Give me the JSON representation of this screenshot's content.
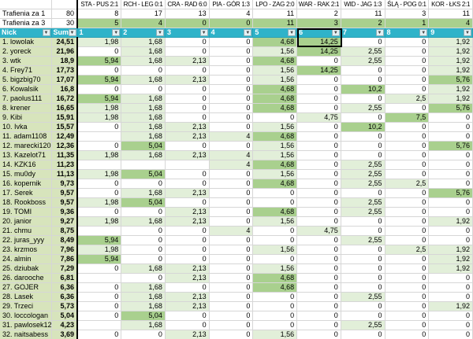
{
  "matches": [
    "STA - PUS 2:1",
    "RCH - LEG 0:1",
    "CRA - RAD 6:0",
    "PIA - GÓR 1:3",
    "LPO - ZAG 2:0",
    "WAR - RAK 2:1",
    "WID - JAG 1:3",
    "ŚLĄ - POG 0:1",
    "KOR - ŁKS 2:1"
  ],
  "hits_rows": [
    {
      "label": "Trafienia za 1",
      "stake": "80",
      "values": [
        "8",
        "17",
        "13",
        "4",
        "11",
        "2",
        "11",
        "3",
        "11"
      ],
      "shaded": false
    },
    {
      "label": "Trafienia za 3",
      "stake": "30",
      "values": [
        "5",
        "4",
        "0",
        "0",
        "11",
        "3",
        "2",
        "1",
        "4"
      ],
      "shaded": true
    }
  ],
  "filter_row": {
    "nick": "Nick",
    "suma": "Suma",
    "numbers": [
      "1",
      "2",
      "3",
      "4",
      "5",
      "6",
      "7",
      "8",
      "9"
    ]
  },
  "icons": {
    "dropdown": "▼"
  },
  "selection": {
    "selected_column_header": "6"
  },
  "players": [
    {
      "name": "1.  lowolak",
      "suma": "24,51",
      "cells": [
        "1,98",
        "1,68",
        "0",
        "0",
        "4,68",
        "14,25",
        "0",
        "0",
        "1,92"
      ]
    },
    {
      "name": "2.  yoreck",
      "suma": "21,96",
      "cells": [
        "0",
        "1,68",
        "0",
        "0",
        "1,56",
        "14,25",
        "2,55",
        "0",
        "1,92"
      ]
    },
    {
      "name": "3.  wtk",
      "suma": "18,9",
      "cells": [
        "5,94",
        "1,68",
        "2,13",
        "0",
        "4,68",
        "0",
        "2,55",
        "0",
        "1,92"
      ]
    },
    {
      "name": "4.  Frey71",
      "suma": "17,73",
      "cells": [
        "0",
        "0",
        "0",
        "0",
        "1,56",
        "14,25",
        "0",
        "0",
        "1,92"
      ]
    },
    {
      "name": "5.  bigzbig70",
      "suma": "17,07",
      "cells": [
        "5,94",
        "1,68",
        "2,13",
        "0",
        "1,56",
        "0",
        "0",
        "0",
        "5,76"
      ]
    },
    {
      "name": "6.  Kowalsik",
      "suma": "16,8",
      "cells": [
        "0",
        "0",
        "0",
        "0",
        "4,68",
        "0",
        "10,2",
        "0",
        "1,92"
      ]
    },
    {
      "name": "7.  paolus111",
      "suma": "16,72",
      "cells": [
        "5,94",
        "1,68",
        "0",
        "0",
        "4,68",
        "0",
        "0",
        "2,5",
        "1,92"
      ]
    },
    {
      "name": "8.  krener",
      "suma": "16,65",
      "cells": [
        "1,98",
        "1,68",
        "0",
        "0",
        "4,68",
        "0",
        "2,55",
        "0",
        "5,76"
      ]
    },
    {
      "name": "9.  Kibi",
      "suma": "15,91",
      "cells": [
        "1,98",
        "1,68",
        "0",
        "0",
        "0",
        "4,75",
        "0",
        "7,5",
        "0"
      ]
    },
    {
      "name": "10.  Ivka",
      "suma": "15,57",
      "cells": [
        "0",
        "1,68",
        "2,13",
        "0",
        "1,56",
        "0",
        "10,2",
        "0",
        "0"
      ]
    },
    {
      "name": "11.  adam1108",
      "suma": "12,49",
      "cells": [
        "",
        "1,68",
        "2,13",
        "4",
        "4,68",
        "0",
        "0",
        "0",
        "0"
      ]
    },
    {
      "name": "12.  marecki1207",
      "suma": "12,36",
      "cells": [
        "0",
        "5,04",
        "0",
        "0",
        "1,56",
        "0",
        "0",
        "0",
        "5,76"
      ]
    },
    {
      "name": "13.  Kazelot71",
      "suma": "11,35",
      "cells": [
        "1,98",
        "1,68",
        "2,13",
        "4",
        "1,56",
        "0",
        "0",
        "0",
        "0"
      ]
    },
    {
      "name": "14.  KZK16",
      "suma": "11,23",
      "cells": [
        "",
        "",
        "",
        "4",
        "4,68",
        "0",
        "2,55",
        "0",
        "0"
      ]
    },
    {
      "name": "15.  mu0dy",
      "suma": "11,13",
      "cells": [
        "1,98",
        "5,04",
        "0",
        "0",
        "1,56",
        "0",
        "2,55",
        "0",
        "0"
      ]
    },
    {
      "name": "16.  kopernik",
      "suma": "9,73",
      "cells": [
        "0",
        "0",
        "0",
        "0",
        "4,68",
        "0",
        "2,55",
        "2,5",
        "0"
      ]
    },
    {
      "name": "17.  Serek",
      "suma": "9,57",
      "cells": [
        "0",
        "1,68",
        "2,13",
        "0",
        "0",
        "0",
        "0",
        "0",
        "5,76"
      ]
    },
    {
      "name": "18.  Rookboss",
      "suma": "9,57",
      "cells": [
        "1,98",
        "5,04",
        "0",
        "0",
        "0",
        "0",
        "2,55",
        "0",
        "0"
      ]
    },
    {
      "name": "19.  TOMI",
      "suma": "9,36",
      "cells": [
        "0",
        "0",
        "2,13",
        "0",
        "4,68",
        "0",
        "2,55",
        "0",
        "0"
      ]
    },
    {
      "name": "20.  janior",
      "suma": "9,27",
      "cells": [
        "1,98",
        "1,68",
        "2,13",
        "0",
        "1,56",
        "0",
        "0",
        "0",
        "1,92"
      ]
    },
    {
      "name": "21.  chmu",
      "suma": "8,75",
      "cells": [
        "",
        "0",
        "0",
        "4",
        "0",
        "4,75",
        "0",
        "0",
        "0"
      ]
    },
    {
      "name": "22.  juras_yyy",
      "suma": "8,49",
      "cells": [
        "5,94",
        "0",
        "0",
        "0",
        "0",
        "0",
        "2,55",
        "0",
        "0"
      ]
    },
    {
      "name": "23.  krzmos",
      "suma": "7,96",
      "cells": [
        "1,98",
        "0",
        "0",
        "0",
        "1,56",
        "0",
        "0",
        "2,5",
        "1,92"
      ]
    },
    {
      "name": "24.  almin",
      "suma": "7,86",
      "cells": [
        "5,94",
        "0",
        "0",
        "0",
        "0",
        "0",
        "0",
        "0",
        "1,92"
      ]
    },
    {
      "name": "25.  dziubak",
      "suma": "7,29",
      "cells": [
        "0",
        "1,68",
        "2,13",
        "0",
        "1,56",
        "0",
        "0",
        "0",
        "1,92"
      ]
    },
    {
      "name": "26.  darooche",
      "suma": "6,81",
      "cells": [
        "",
        "0",
        "2,13",
        "0",
        "4,68",
        "0",
        "0",
        "0",
        "0"
      ]
    },
    {
      "name": "27.  GOJER",
      "suma": "6,36",
      "cells": [
        "0",
        "1,68",
        "0",
        "0",
        "4,68",
        "0",
        "0",
        "0",
        "0"
      ]
    },
    {
      "name": "28.  Lasek",
      "suma": "6,36",
      "cells": [
        "0",
        "1,68",
        "2,13",
        "0",
        "0",
        "0",
        "2,55",
        "0",
        "0"
      ]
    },
    {
      "name": "29.  Trzeci",
      "suma": "5,73",
      "cells": [
        "0",
        "1,68",
        "2,13",
        "0",
        "0",
        "0",
        "0",
        "0",
        "1,92"
      ]
    },
    {
      "name": "30.  loccologan",
      "suma": "5,04",
      "cells": [
        "0",
        "5,04",
        "0",
        "0",
        "0",
        "0",
        "0",
        "0",
        "0"
      ]
    },
    {
      "name": "31.  pawlosek12",
      "suma": "4,23",
      "cells": [
        "",
        "1,68",
        "0",
        "0",
        "0",
        "0",
        "2,55",
        "0",
        "0"
      ]
    },
    {
      "name": "32.  naitsabess",
      "suma": "3,69",
      "cells": [
        "0",
        "0",
        "2,13",
        "0",
        "1,56",
        "0",
        "0",
        "0",
        "0"
      ]
    }
  ],
  "shade": {
    "light_values": [
      "1,98",
      "1,68",
      "2,13",
      "1,56",
      "2,55",
      "1,92",
      "2,5",
      "4",
      "4,75"
    ],
    "medium_values": [
      "5,94",
      "5,04",
      "4,68",
      "14,25",
      "10,2",
      "7,5",
      "5,76"
    ]
  },
  "colors": {
    "filter_row_bg": "#2FB3C9",
    "name_column_bg": "#D7E4BC",
    "hit_light_bg": "#E2EFD9",
    "hit_exact_bg": "#A9D08E",
    "selection_border": "#000000"
  }
}
